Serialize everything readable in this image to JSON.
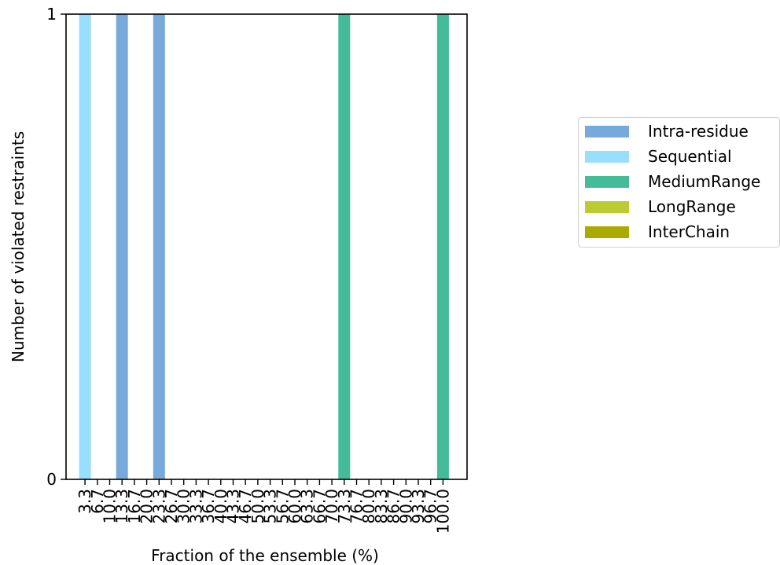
{
  "chart_data": {
    "type": "bar",
    "stacked": true,
    "xlabel": "Fraction of the ensemble (%)",
    "ylabel": "Number of violated restraints",
    "ylim": [
      0,
      1
    ],
    "yticks": [
      "0",
      "1"
    ],
    "categories": [
      "3.3",
      "6.7",
      "10.0",
      "13.3",
      "16.7",
      "20.0",
      "23.3",
      "26.7",
      "30.0",
      "33.3",
      "36.7",
      "40.0",
      "43.3",
      "46.7",
      "50.0",
      "53.3",
      "56.7",
      "60.0",
      "63.3",
      "66.7",
      "70.0",
      "73.3",
      "76.7",
      "80.0",
      "83.3",
      "86.7",
      "90.0",
      "93.3",
      "96.7",
      "100.0"
    ],
    "series": [
      {
        "name": "Intra-residue",
        "color": "#77a9db",
        "values": [
          0,
          0,
          0,
          1,
          0,
          0,
          1,
          0,
          0,
          0,
          0,
          0,
          0,
          0,
          0,
          0,
          0,
          0,
          0,
          0,
          0,
          0,
          0,
          0,
          0,
          0,
          0,
          0,
          0,
          0
        ]
      },
      {
        "name": "Sequential",
        "color": "#99ddff",
        "values": [
          1,
          0,
          0,
          0,
          0,
          0,
          0,
          0,
          0,
          0,
          0,
          0,
          0,
          0,
          0,
          0,
          0,
          0,
          0,
          0,
          0,
          0,
          0,
          0,
          0,
          0,
          0,
          0,
          0,
          0
        ]
      },
      {
        "name": "MediumRange",
        "color": "#44bb99",
        "values": [
          0,
          0,
          0,
          0,
          0,
          0,
          0,
          0,
          0,
          0,
          0,
          0,
          0,
          0,
          0,
          0,
          0,
          0,
          0,
          0,
          0,
          1,
          0,
          0,
          0,
          0,
          0,
          0,
          0,
          1
        ]
      },
      {
        "name": "LongRange",
        "color": "#bbcc33",
        "values": [
          0,
          0,
          0,
          0,
          0,
          0,
          0,
          0,
          0,
          0,
          0,
          0,
          0,
          0,
          0,
          0,
          0,
          0,
          0,
          0,
          0,
          0,
          0,
          0,
          0,
          0,
          0,
          0,
          0,
          0
        ]
      },
      {
        "name": "InterChain",
        "color": "#aaaa00",
        "values": [
          0,
          0,
          0,
          0,
          0,
          0,
          0,
          0,
          0,
          0,
          0,
          0,
          0,
          0,
          0,
          0,
          0,
          0,
          0,
          0,
          0,
          0,
          0,
          0,
          0,
          0,
          0,
          0,
          0,
          0
        ]
      }
    ],
    "legend_position": "right"
  }
}
